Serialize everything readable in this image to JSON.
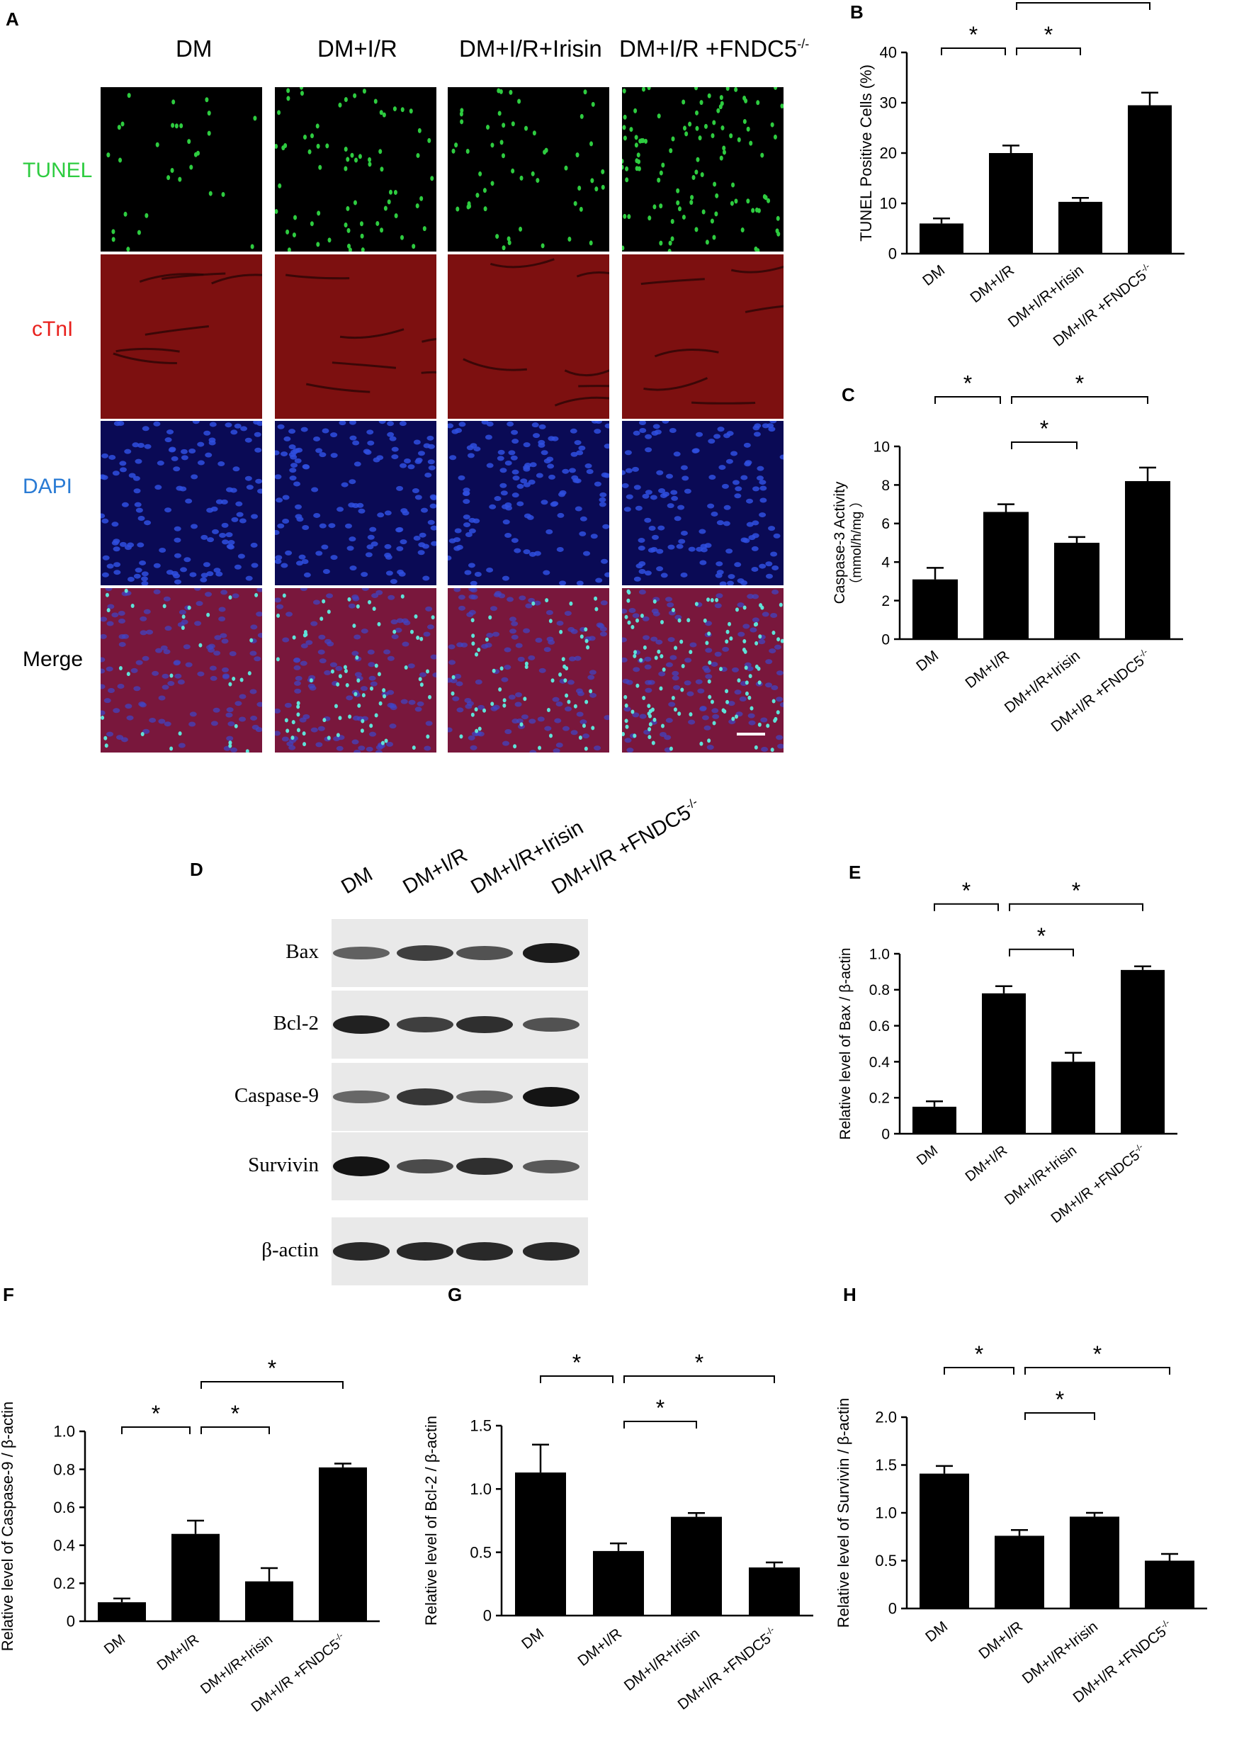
{
  "panel_a": {
    "letter": "A",
    "columns": [
      "DM",
      "DM+I/R",
      "DM+I/R+Irisin",
      "DM+I/R +FNDC5"
    ],
    "column_superscript": "-/-",
    "rows": [
      {
        "label": "TUNEL",
        "color": "#2ecc40",
        "bg": "#000000"
      },
      {
        "label": "cTnI",
        "color": "#e8201c",
        "bg": "#6a0d0d"
      },
      {
        "label": "DAPI",
        "color": "#2a7bd4",
        "bg": "#0a0a55"
      },
      {
        "label": "Merge",
        "color": "#000000",
        "bg": "#5a1340"
      }
    ]
  },
  "panel_d": {
    "letter": "D",
    "columns": [
      "DM",
      "DM+I/R",
      "DM+I/R+Irisin",
      "DM+I/R +FNDC5"
    ],
    "column_superscript": "-/-",
    "proteins": [
      "Bax",
      "Bcl-2",
      "Caspase-9",
      "Survivin",
      "β-actin"
    ],
    "band_intensity": [
      [
        0.45,
        0.7,
        0.55,
        0.95
      ],
      [
        0.9,
        0.7,
        0.8,
        0.55
      ],
      [
        0.4,
        0.75,
        0.45,
        1.0
      ],
      [
        1.0,
        0.6,
        0.8,
        0.5
      ],
      [
        0.85,
        0.85,
        0.85,
        0.85
      ]
    ]
  },
  "chart_data": [
    {
      "panel": "B",
      "type": "bar",
      "categories": [
        "DM",
        "DM+I/R",
        "DM+I/R+Irisin",
        "DM+I/R +FNDC5"
      ],
      "values": [
        6,
        20,
        10.3,
        29.5
      ],
      "errors": [
        1.0,
        1.5,
        0.8,
        2.5
      ],
      "ylabel": "TUNEL Positive  Cells (%)",
      "ylabel2": "",
      "ylim": [
        0,
        40
      ],
      "yticks": [
        0,
        10,
        20,
        30,
        40
      ],
      "brackets": [
        [
          0,
          1,
          0
        ],
        [
          1,
          2,
          0
        ],
        [
          1,
          3,
          1
        ]
      ]
    },
    {
      "panel": "C",
      "type": "bar",
      "categories": [
        "DM",
        "DM+I/R",
        "DM+I/R+Irisin",
        "DM+I/R +FNDC5"
      ],
      "values": [
        3.1,
        6.6,
        5.0,
        8.2
      ],
      "errors": [
        0.6,
        0.4,
        0.3,
        0.7
      ],
      "ylabel": "Caspase-3 Activity",
      "ylabel2": "（mmol/h/mg ）",
      "ylim": [
        0,
        10
      ],
      "yticks": [
        0,
        2,
        4,
        6,
        8,
        10
      ],
      "brackets": [
        [
          0,
          1,
          1
        ],
        [
          1,
          2,
          0
        ],
        [
          1,
          3,
          1
        ]
      ]
    },
    {
      "panel": "E",
      "type": "bar",
      "categories": [
        "DM",
        "DM+I/R",
        "DM+I/R+Irisin",
        "DM+I/R +FNDC5"
      ],
      "values": [
        0.15,
        0.78,
        0.4,
        0.91
      ],
      "errors": [
        0.03,
        0.04,
        0.05,
        0.02
      ],
      "ylabel": "Relative level of Bax / β-actin",
      "ylabel2": "",
      "ylim": [
        0,
        1.0
      ],
      "yticks": [
        0,
        0.2,
        0.4,
        0.6,
        0.8,
        1.0
      ],
      "brackets": [
        [
          0,
          1,
          1
        ],
        [
          1,
          2,
          0
        ],
        [
          1,
          3,
          1
        ]
      ]
    },
    {
      "panel": "F",
      "type": "bar",
      "categories": [
        "DM",
        "DM+I/R",
        "DM+I/R+Irisin",
        "DM+I/R +FNDC5"
      ],
      "values": [
        0.1,
        0.46,
        0.21,
        0.81
      ],
      "errors": [
        0.02,
        0.07,
        0.07,
        0.02
      ],
      "ylabel": "Relative level of Caspase-9 / β-actin",
      "ylabel2": "",
      "ylim": [
        0,
        1.0
      ],
      "yticks": [
        0,
        0.2,
        0.4,
        0.6,
        0.8,
        1.0
      ],
      "brackets": [
        [
          0,
          1,
          0
        ],
        [
          1,
          2,
          0
        ],
        [
          1,
          3,
          1
        ]
      ]
    },
    {
      "panel": "G",
      "type": "bar",
      "categories": [
        "DM",
        "DM+I/R",
        "DM+I/R+Irisin",
        "DM+I/R +FNDC5"
      ],
      "values": [
        1.13,
        0.51,
        0.78,
        0.38
      ],
      "errors": [
        0.22,
        0.06,
        0.03,
        0.04
      ],
      "ylabel": "Relative level of Bcl-2 / β-actin",
      "ylabel2": "",
      "ylim": [
        0,
        1.5
      ],
      "yticks": [
        0,
        0.5,
        1.0,
        1.5
      ],
      "brackets": [
        [
          0,
          1,
          1
        ],
        [
          1,
          2,
          0
        ],
        [
          1,
          3,
          1
        ]
      ]
    },
    {
      "panel": "H",
      "type": "bar",
      "categories": [
        "DM",
        "DM+I/R",
        "DM+I/R+Irisin",
        "DM+I/R +FNDC5"
      ],
      "values": [
        1.41,
        0.76,
        0.96,
        0.5
      ],
      "errors": [
        0.08,
        0.06,
        0.04,
        0.07
      ],
      "ylabel": "Relative level of Survivin / β-actin",
      "ylabel2": "",
      "ylim": [
        0,
        2.0
      ],
      "yticks": [
        0,
        0.5,
        1.0,
        1.5,
        2.0
      ],
      "brackets": [
        [
          0,
          1,
          1
        ],
        [
          1,
          2,
          0
        ],
        [
          1,
          3,
          1
        ]
      ]
    }
  ],
  "category_superscript": "-/-",
  "significance_mark": "*"
}
